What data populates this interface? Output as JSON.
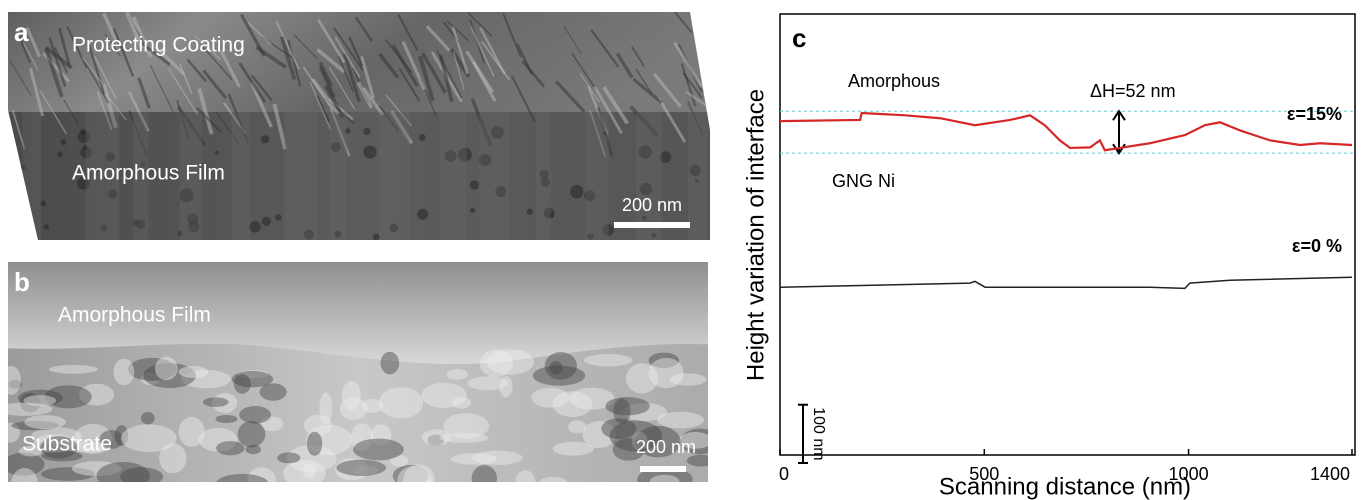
{
  "panels": [
    {
      "label": "a",
      "regions": [
        "Protecting Coating",
        "Amorphous Film"
      ],
      "scale_bar": "200 nm"
    },
    {
      "label": "b",
      "regions": [
        "Amorphous Film",
        "Substrate"
      ],
      "scale_bar": "200 nm"
    }
  ],
  "chart_data": {
    "type": "line",
    "panel_label": "c",
    "y_label": "Height variation of  interface",
    "x_label": "Scanning distance (nm)",
    "xlim": [
      0,
      1400
    ],
    "xticks": [
      0,
      500,
      1000,
      1400
    ],
    "ylim": [
      0,
      750
    ],
    "series": [
      {
        "name": "ε=15%",
        "color": "#d62728",
        "x": [
          0,
          196,
          200,
          306,
          392,
          477,
          563,
          612,
          648,
          685,
          710,
          759,
          783,
          795,
          832,
          905,
          991,
          1040,
          1077,
          1126,
          1199,
          1273,
          1322,
          1400
        ],
        "values": [
          573,
          575,
          587,
          583,
          578,
          566,
          575,
          583,
          566,
          540,
          527,
          528,
          540,
          523,
          527,
          535,
          549,
          566,
          571,
          557,
          540,
          532,
          535,
          532
        ]
      },
      {
        "name": "ε=0 %",
        "color": "#222222",
        "x": [
          0,
          465,
          477,
          502,
          905,
          991,
          1003,
          1101,
          1400
        ],
        "values": [
          288,
          295,
          298,
          288,
          288,
          286,
          295,
          300,
          305
        ]
      }
    ],
    "reference_lines": [
      590,
      518
    ],
    "annotations": [
      "Amorphous",
      "GNG Ni",
      "ΔH=52 nm"
    ],
    "scale_bar": {
      "value": 100,
      "label": "100 nm"
    }
  }
}
